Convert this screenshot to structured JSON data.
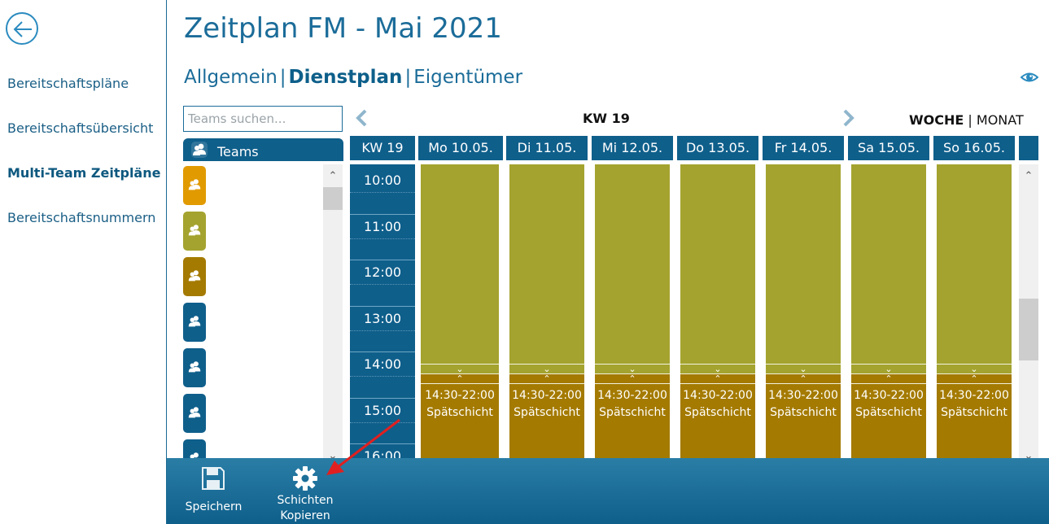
{
  "title": "Zeitplan FM - Mai 2021",
  "sidebar": {
    "items": [
      {
        "label": "Bereitschaftspläne",
        "active": false
      },
      {
        "label": "Bereitschaftsübersicht",
        "active": false
      },
      {
        "label": "Multi-Team Zeitpläne",
        "active": true
      },
      {
        "label": "Bereitschaftsnummern",
        "active": false
      }
    ]
  },
  "subnav": {
    "tabs": [
      "Allgemein",
      "Dienstplan",
      "Eigentümer"
    ],
    "separator": "|",
    "active": "Dienstplan"
  },
  "teams": {
    "search_placeholder": "Teams suchen...",
    "header_label": "Teams",
    "tile_colors": [
      "#e19a00",
      "#a4a32f",
      "#a47a00",
      "#0f5f8b",
      "#0f5f8b",
      "#0f5f8b",
      "#0f5f8b"
    ]
  },
  "calendar": {
    "week_label": "KW 19",
    "view_woche": "WOCHE",
    "view_separator": "|",
    "view_monat": "MONAT",
    "week_column_label": "KW 19",
    "days": [
      "Mo 10.05.",
      "Di 11.05.",
      "Mi 12.05.",
      "Do 13.05.",
      "Fr 14.05.",
      "Sa 15.05.",
      "So 16.05."
    ],
    "hours": [
      "10:00",
      "11:00",
      "12:00",
      "13:00",
      "14:00",
      "15:00",
      "16:00"
    ],
    "shift": {
      "time": "14:30-22:00",
      "name": "Spätschicht",
      "color": "#a47a00"
    },
    "earlier_shift_color": "#a4a32f"
  },
  "toolbar": {
    "save_label": "Speichern",
    "copy_label_line1": "Schichten",
    "copy_label_line2": "Kopieren"
  }
}
